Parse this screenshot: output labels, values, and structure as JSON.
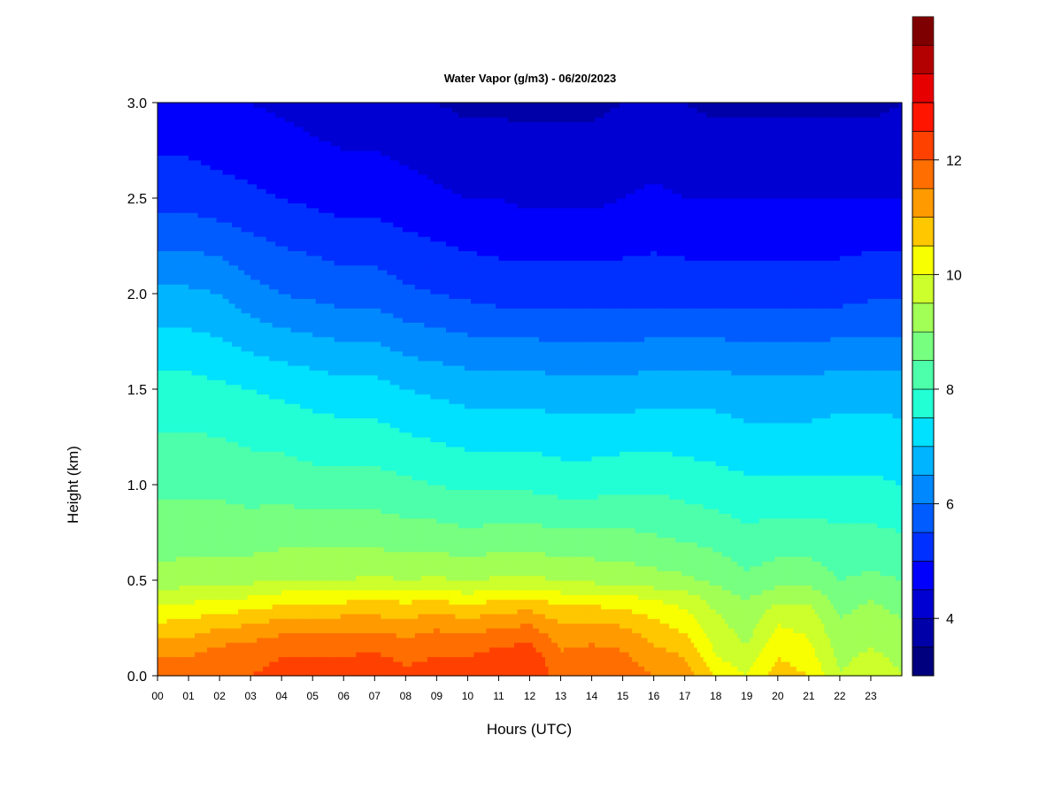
{
  "chart_data": {
    "type": "heatmap",
    "title": "Water Vapor (g/m3) - 06/20/2023",
    "xlabel": "Hours (UTC)",
    "ylabel": "Height (km)",
    "x_ticks": [
      "00",
      "01",
      "02",
      "03",
      "04",
      "05",
      "06",
      "07",
      "08",
      "09",
      "10",
      "11",
      "12",
      "13",
      "14",
      "15",
      "16",
      "17",
      "18",
      "19",
      "20",
      "21",
      "22",
      "23"
    ],
    "y_ticks": [
      "0.0",
      "0.5",
      "1.0",
      "1.5",
      "2.0",
      "2.5",
      "3.0"
    ],
    "xlim": [
      0,
      24
    ],
    "ylim": [
      0,
      3.0
    ],
    "colorbar": {
      "range": [
        3,
        13
      ],
      "step": 0.5,
      "tick_values": [
        4,
        6,
        8,
        10,
        12
      ],
      "tick_labels": [
        "4",
        "6",
        "8",
        "10",
        "12"
      ],
      "colors": [
        "#00007f",
        "#0000a8",
        "#0000d2",
        "#0000fc",
        "#0030ff",
        "#005cff",
        "#0088ff",
        "#00b4ff",
        "#00e0ff",
        "#22ffd5",
        "#4dffaa",
        "#77ff80",
        "#a2ff55",
        "#ccff2b",
        "#f7ff00",
        "#ffc700",
        "#ff9a00",
        "#ff6e00",
        "#ff4100",
        "#ff1500",
        "#e60000",
        "#b30000",
        "#7f0000"
      ]
    },
    "grid": false,
    "hours": [
      0,
      1,
      2,
      3,
      4,
      5,
      6,
      7,
      8,
      9,
      10,
      11,
      12,
      13,
      14,
      15,
      16,
      17,
      18,
      19,
      20,
      21,
      22,
      23,
      24
    ],
    "heights_km": [
      0.0,
      0.1,
      0.2,
      0.3,
      0.4,
      0.5,
      0.7,
      1.0,
      1.5,
      2.0,
      2.5,
      3.0
    ],
    "values_g_m3": [
      [
        11.8,
        11.8,
        12.0,
        12.0,
        12.2,
        12.2,
        12.2,
        12.3,
        12.1,
        12.2,
        12.2,
        12.3,
        12.4,
        11.8,
        11.9,
        11.9,
        11.5,
        11.3,
        10.5,
        10.0,
        10.8,
        10.5,
        9.5,
        9.8,
        9.5
      ],
      [
        11.5,
        11.5,
        11.8,
        11.8,
        12.0,
        12.0,
        12.0,
        12.1,
        11.9,
        12.0,
        12.0,
        12.2,
        12.3,
        11.6,
        11.7,
        11.6,
        11.2,
        11.0,
        10.0,
        9.7,
        10.5,
        10.2,
        9.4,
        9.6,
        9.4
      ],
      [
        11.0,
        11.0,
        11.3,
        11.4,
        11.6,
        11.6,
        11.7,
        11.7,
        11.5,
        11.7,
        11.6,
        11.8,
        11.9,
        11.3,
        11.4,
        11.3,
        10.9,
        10.6,
        9.8,
        9.4,
        10.2,
        10.0,
        9.2,
        9.4,
        9.2
      ],
      [
        10.4,
        10.5,
        10.7,
        10.8,
        11.0,
        11.0,
        11.1,
        11.1,
        11.0,
        11.2,
        11.0,
        11.2,
        11.3,
        10.9,
        10.9,
        10.8,
        10.5,
        10.2,
        9.6,
        9.2,
        9.9,
        9.8,
        9.0,
        9.2,
        9.0
      ],
      [
        9.8,
        9.9,
        10.0,
        10.1,
        10.3,
        10.3,
        10.4,
        10.5,
        10.4,
        10.5,
        10.3,
        10.5,
        10.6,
        10.3,
        10.3,
        10.2,
        10.0,
        9.8,
        9.3,
        9.0,
        9.4,
        9.4,
        8.8,
        9.0,
        8.8
      ],
      [
        9.2,
        9.3,
        9.3,
        9.4,
        9.5,
        9.5,
        9.5,
        9.6,
        9.5,
        9.6,
        9.4,
        9.6,
        9.6,
        9.5,
        9.4,
        9.3,
        9.2,
        9.1,
        8.9,
        8.6,
        8.8,
        8.8,
        8.5,
        8.6,
        8.5
      ],
      [
        8.8,
        8.8,
        8.8,
        8.8,
        8.9,
        8.9,
        8.9,
        8.9,
        8.8,
        8.8,
        8.7,
        8.8,
        8.8,
        8.7,
        8.7,
        8.7,
        8.6,
        8.5,
        8.4,
        8.2,
        8.3,
        8.3,
        8.2,
        8.2,
        8.1
      ],
      [
        8.4,
        8.4,
        8.4,
        8.3,
        8.3,
        8.2,
        8.2,
        8.2,
        8.1,
        8.0,
        7.9,
        7.9,
        7.9,
        7.8,
        7.8,
        7.9,
        7.9,
        7.8,
        7.7,
        7.6,
        7.6,
        7.6,
        7.6,
        7.6,
        7.5
      ],
      [
        7.7,
        7.7,
        7.6,
        7.5,
        7.4,
        7.3,
        7.2,
        7.2,
        7.0,
        6.9,
        6.8,
        6.8,
        6.8,
        6.7,
        6.7,
        6.7,
        6.8,
        6.8,
        6.8,
        6.7,
        6.7,
        6.7,
        6.8,
        6.8,
        6.8
      ],
      [
        6.6,
        6.6,
        6.5,
        6.2,
        6.0,
        5.9,
        5.8,
        5.8,
        5.6,
        5.5,
        5.4,
        5.3,
        5.3,
        5.3,
        5.3,
        5.3,
        5.3,
        5.3,
        5.3,
        5.3,
        5.3,
        5.3,
        5.3,
        5.4,
        5.4
      ],
      [
        5.3,
        5.3,
        5.2,
        5.1,
        5.0,
        4.9,
        4.8,
        4.8,
        4.7,
        4.6,
        4.5,
        4.5,
        4.4,
        4.4,
        4.4,
        4.5,
        4.6,
        4.5,
        4.5,
        4.5,
        4.5,
        4.5,
        4.5,
        4.5,
        4.5
      ],
      [
        4.6,
        4.6,
        4.5,
        4.5,
        4.4,
        4.3,
        4.2,
        4.2,
        4.1,
        4.0,
        3.9,
        3.9,
        3.9,
        3.9,
        3.9,
        4.0,
        4.0,
        4.0,
        3.9,
        3.9,
        3.9,
        3.9,
        3.9,
        3.9,
        4.0
      ]
    ]
  }
}
